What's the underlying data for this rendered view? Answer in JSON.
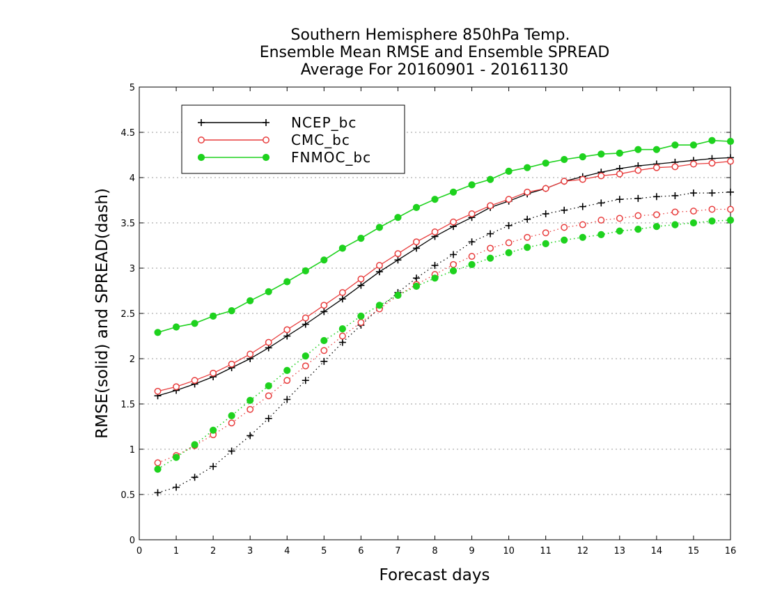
{
  "chart_data": {
    "type": "line",
    "title_lines": [
      "Southern Hemisphere 850hPa Temp.",
      "Ensemble Mean RMSE and Ensemble SPREAD",
      "Average For 20160901 - 20161130"
    ],
    "xlabel": "Forecast days",
    "ylabel": "RMSE(solid) and SPREAD(dash)",
    "xlim": [
      0,
      16
    ],
    "ylim": [
      0,
      5
    ],
    "xticks": [
      "0",
      "1",
      "2",
      "3",
      "4",
      "5",
      "6",
      "7",
      "8",
      "9",
      "10",
      "11",
      "12",
      "13",
      "14",
      "15",
      "16"
    ],
    "yticks": [
      "0",
      "0.5",
      "1",
      "1.5",
      "2",
      "2.5",
      "3",
      "3.5",
      "4",
      "4.5",
      "5"
    ],
    "grid": true,
    "legend_position": "top-left",
    "x": [
      0.5,
      1,
      1.5,
      2,
      2.5,
      3,
      3.5,
      4,
      4.5,
      5,
      5.5,
      6,
      6.5,
      7,
      7.5,
      8,
      8.5,
      9,
      9.5,
      10,
      10.5,
      11,
      11.5,
      12,
      12.5,
      13,
      13.5,
      14,
      14.5,
      15,
      15.5,
      16
    ],
    "series": [
      {
        "name": "NCEP_bc",
        "color": "#000000",
        "marker": "plus",
        "rmse": [
          1.59,
          1.65,
          1.72,
          1.8,
          1.9,
          2.0,
          2.12,
          2.25,
          2.38,
          2.52,
          2.66,
          2.81,
          2.96,
          3.09,
          3.22,
          3.35,
          3.46,
          3.56,
          3.67,
          3.74,
          3.82,
          3.88,
          3.96,
          4.01,
          4.06,
          4.1,
          4.13,
          4.15,
          4.17,
          4.19,
          4.21,
          4.22
        ],
        "spread": [
          0.52,
          0.58,
          0.69,
          0.81,
          0.98,
          1.15,
          1.34,
          1.55,
          1.76,
          1.97,
          2.18,
          2.37,
          2.56,
          2.73,
          2.89,
          3.03,
          3.15,
          3.29,
          3.38,
          3.47,
          3.54,
          3.6,
          3.64,
          3.68,
          3.72,
          3.76,
          3.77,
          3.79,
          3.8,
          3.83,
          3.83,
          3.84
        ]
      },
      {
        "name": "CMC_bc",
        "color": "#e83c3c",
        "marker": "open-circle",
        "rmse": [
          1.64,
          1.69,
          1.76,
          1.84,
          1.94,
          2.05,
          2.18,
          2.32,
          2.45,
          2.59,
          2.73,
          2.88,
          3.03,
          3.16,
          3.29,
          3.4,
          3.51,
          3.6,
          3.69,
          3.76,
          3.84,
          3.88,
          3.96,
          3.98,
          4.02,
          4.04,
          4.08,
          4.11,
          4.12,
          4.15,
          4.16,
          4.18
        ],
        "spread": [
          0.85,
          0.93,
          1.04,
          1.16,
          1.29,
          1.44,
          1.59,
          1.76,
          1.92,
          2.09,
          2.25,
          2.4,
          2.55,
          2.7,
          2.82,
          2.93,
          3.04,
          3.13,
          3.22,
          3.28,
          3.34,
          3.39,
          3.45,
          3.48,
          3.53,
          3.55,
          3.58,
          3.59,
          3.62,
          3.63,
          3.65,
          3.65
        ]
      },
      {
        "name": "FNMOC_bc",
        "color": "#1ed21e",
        "marker": "filled-circle",
        "rmse": [
          2.29,
          2.35,
          2.39,
          2.47,
          2.53,
          2.64,
          2.74,
          2.85,
          2.97,
          3.09,
          3.22,
          3.33,
          3.45,
          3.56,
          3.67,
          3.76,
          3.84,
          3.92,
          3.98,
          4.07,
          4.11,
          4.16,
          4.2,
          4.23,
          4.26,
          4.27,
          4.31,
          4.31,
          4.36,
          4.36,
          4.41,
          4.4
        ],
        "spread": [
          0.78,
          0.91,
          1.05,
          1.21,
          1.37,
          1.54,
          1.7,
          1.87,
          2.03,
          2.2,
          2.33,
          2.47,
          2.59,
          2.7,
          2.8,
          2.89,
          2.97,
          3.04,
          3.11,
          3.17,
          3.23,
          3.27,
          3.31,
          3.34,
          3.37,
          3.41,
          3.43,
          3.46,
          3.48,
          3.5,
          3.52,
          3.53
        ]
      }
    ]
  }
}
